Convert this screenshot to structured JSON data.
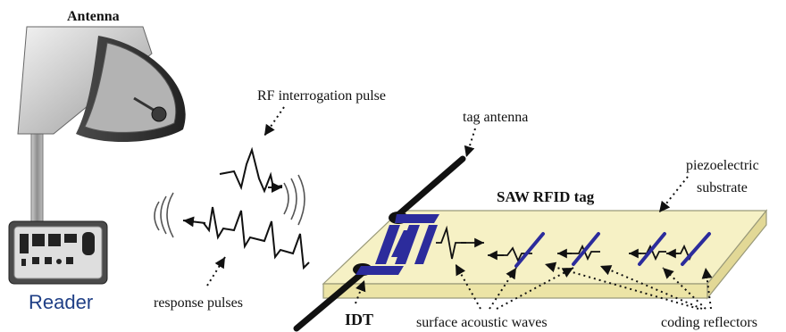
{
  "labels": {
    "antenna": "Antenna",
    "reader": "Reader",
    "rf_pulse": "RF interrogation pulse",
    "tag_antenna": "tag antenna",
    "piezo_line1": "piezoelectric",
    "piezo_line2": "substrate",
    "saw_tag": "SAW RFID tag",
    "response": "response pulses",
    "idt": "IDT",
    "saw_waves": "surface acoustic waves",
    "reflectors": "coding reflectors"
  },
  "colors": {
    "substrate": "#f6f1c5",
    "electrode": "#2c2c9c",
    "reader_text": "#1f3f86",
    "ink": "#111111"
  }
}
